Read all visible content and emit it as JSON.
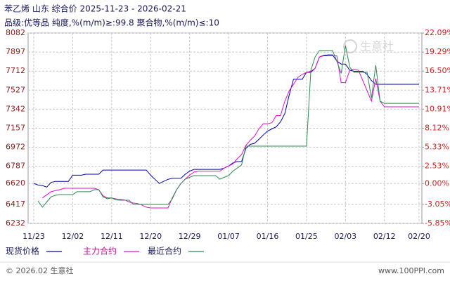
{
  "chart_data": {
    "type": "line",
    "title": "苯乙烯 山东 综合价 2025-11-23 - 2026-02-21",
    "subtitle": "品级:优等品 纯度,%(m/m)≥:99.8 聚合物,%(m/m)≤:10",
    "watermark": "生意社",
    "copyright": "© 2026.02 生意社",
    "source": "www.100PPI.com",
    "categories": [
      "11/23",
      null,
      null,
      null,
      null,
      null,
      null,
      null,
      null,
      "12/02",
      null,
      null,
      null,
      null,
      null,
      null,
      null,
      null,
      "12/11",
      null,
      null,
      null,
      null,
      null,
      null,
      null,
      null,
      "12/20",
      null,
      null,
      null,
      null,
      null,
      null,
      null,
      null,
      "12/29",
      null,
      null,
      null,
      null,
      null,
      null,
      null,
      null,
      "01/07",
      null,
      null,
      null,
      null,
      null,
      null,
      null,
      null,
      "01/16",
      null,
      null,
      null,
      null,
      null,
      null,
      null,
      null,
      "01/25",
      null,
      null,
      null,
      null,
      null,
      null,
      null,
      null,
      "02/03",
      null,
      null,
      null,
      null,
      null,
      null,
      null,
      null,
      "02/12",
      null,
      null,
      null,
      null,
      null,
      null,
      null,
      "02/20"
    ],
    "ylim": [
      6232,
      8082
    ],
    "yticks": [
      8082,
      7897,
      7712,
      7527,
      7342,
      7157,
      6972,
      6787,
      6620,
      6417,
      6232
    ],
    "y2lim": [
      -5.85,
      22.09
    ],
    "y2ticks": [
      {
        "value": 22.09,
        "label": "22.09%"
      },
      {
        "value": 19.29,
        "label": "19.29%"
      },
      {
        "value": 16.5,
        "label": "16.50%"
      },
      {
        "value": 13.71,
        "label": "13.71%"
      },
      {
        "value": 10.91,
        "label": "10.91%"
      },
      {
        "value": 8.12,
        "label": "8.12%"
      },
      {
        "value": 5.33,
        "label": "5.33%"
      },
      {
        "value": 2.53,
        "label": "2.53%"
      },
      {
        "value": 0,
        "label": "0.00%"
      },
      {
        "value": -3.05,
        "label": "-3.05%"
      },
      {
        "value": -5.85,
        "label": "-5.85%"
      }
    ],
    "grid": true,
    "series": [
      {
        "name": "现货价格",
        "color": "#0000b0",
        "values": [
          6620,
          6605,
          6600,
          6585,
          6630,
          6640,
          6640,
          6640,
          6640,
          6700,
          6700,
          6700,
          6710,
          6710,
          6710,
          6710,
          6750,
          6750,
          6750,
          6750,
          6750,
          6750,
          6750,
          6750,
          6750,
          6750,
          6750,
          6700,
          6660,
          6620,
          6640,
          6660,
          6670,
          6670,
          6670,
          6710,
          6740,
          6757,
          6757,
          6757,
          6757,
          6757,
          6757,
          6757,
          6770,
          6790,
          6820,
          6833,
          6833,
          6960,
          7000,
          7010,
          7050,
          7090,
          7130,
          7150,
          7170,
          7220,
          7300,
          7480,
          7632,
          7632,
          7632,
          7700,
          7700,
          7740,
          7850,
          7865,
          7870,
          7870,
          7810,
          7780,
          7780,
          7720,
          7710,
          7710,
          7710,
          7680,
          7620,
          7584,
          7584,
          7584,
          7584,
          7584,
          7584,
          7584,
          7584,
          7584,
          7584,
          7584
        ]
      },
      {
        "name": "主力合约",
        "color": "#e010c8",
        "values": [
          null,
          null,
          6480,
          6510,
          6540,
          6550,
          6560,
          6573,
          6573,
          6573,
          6573,
          6573,
          6573,
          6573,
          6573,
          6560,
          6500,
          6480,
          6480,
          6470,
          6465,
          6460,
          6440,
          6430,
          6425,
          6410,
          6390,
          6382,
          6382,
          6382,
          6382,
          6382,
          6480,
          6560,
          6620,
          6662,
          6700,
          6730,
          6740,
          6740,
          6740,
          6740,
          6740,
          6740,
          6770,
          6790,
          6810,
          6860,
          6901,
          6990,
          7040,
          7080,
          7150,
          7201,
          7201,
          7210,
          7280,
          7280,
          7420,
          7520,
          7584,
          7650,
          7680,
          7700,
          7710,
          7740,
          7850,
          7860,
          7860,
          7860,
          7860,
          7600,
          7600,
          7720,
          7730,
          7720,
          7620,
          7520,
          7420,
          7640,
          7420,
          7365,
          7365,
          7365,
          7365,
          7365,
          7365,
          7365,
          7365,
          7365
        ]
      },
      {
        "name": "最近合约",
        "color": "#2e8b50",
        "values": [
          null,
          6450,
          6390,
          6440,
          6490,
          6505,
          6512,
          6512,
          6512,
          6512,
          6540,
          6540,
          6540,
          6540,
          6560,
          6560,
          6490,
          6471,
          6480,
          6460,
          6457,
          6457,
          6457,
          6416,
          6416,
          6416,
          6416,
          6416,
          6416,
          6416,
          6416,
          6416,
          6470,
          6560,
          6620,
          6662,
          6680,
          6696,
          6696,
          6696,
          6696,
          6696,
          6696,
          6662,
          6680,
          6696,
          6740,
          6770,
          6800,
          6983,
          6983,
          6983,
          6983,
          6983,
          6983,
          6983,
          6983,
          6983,
          6983,
          6983,
          6983,
          6983,
          6983,
          6983,
          7720,
          7850,
          7912,
          7912,
          7912,
          7912,
          7810,
          7690,
          7960,
          7750,
          7700,
          7700,
          7700,
          7700,
          7450,
          7770,
          7420,
          7399,
          7399,
          7399,
          7399,
          7399,
          7399,
          7399,
          7399,
          7399
        ]
      }
    ]
  }
}
